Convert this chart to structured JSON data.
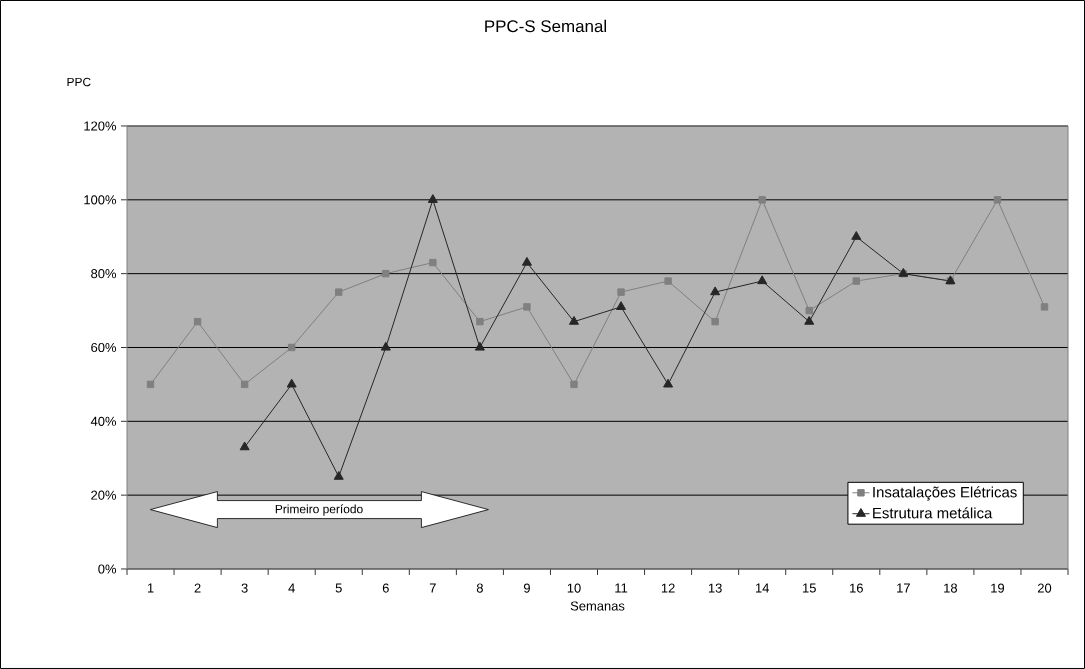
{
  "chart_data": {
    "type": "line",
    "title": "PPC-S  Semanal",
    "ylabel": "PPC",
    "xlabel": "Semanas",
    "categories": [
      "1",
      "2",
      "3",
      "4",
      "5",
      "6",
      "7",
      "8",
      "9",
      "10",
      "11",
      "12",
      "13",
      "14",
      "15",
      "16",
      "17",
      "18",
      "19",
      "20"
    ],
    "series": [
      {
        "name": "Insatalações Elétricas",
        "color": "#808080",
        "marker": "square",
        "values": [
          50,
          67,
          50,
          60,
          75,
          80,
          83,
          67,
          71,
          50,
          75,
          78,
          67,
          100,
          70,
          78,
          80,
          78,
          100,
          71
        ]
      },
      {
        "name": "Estrutura metálica",
        "color": "#262626",
        "marker": "triangle",
        "values": [
          null,
          null,
          33,
          50,
          25,
          60,
          100,
          60,
          83,
          67,
          71,
          50,
          75,
          78,
          67,
          90,
          80,
          78,
          null,
          null
        ]
      }
    ],
    "ylim": [
      0,
      120
    ],
    "yticks": [
      {
        "value": 0,
        "label": "0%"
      },
      {
        "value": 20,
        "label": "20%"
      },
      {
        "value": 40,
        "label": "40%"
      },
      {
        "value": 60,
        "label": "60%"
      },
      {
        "value": 80,
        "label": "80%"
      },
      {
        "value": 100,
        "label": "100%"
      },
      {
        "value": 120,
        "label": "120%"
      }
    ],
    "grid": "y",
    "legend": "bottom right",
    "line_style": "solid",
    "annotations": [
      "Primeiro período"
    ]
  }
}
